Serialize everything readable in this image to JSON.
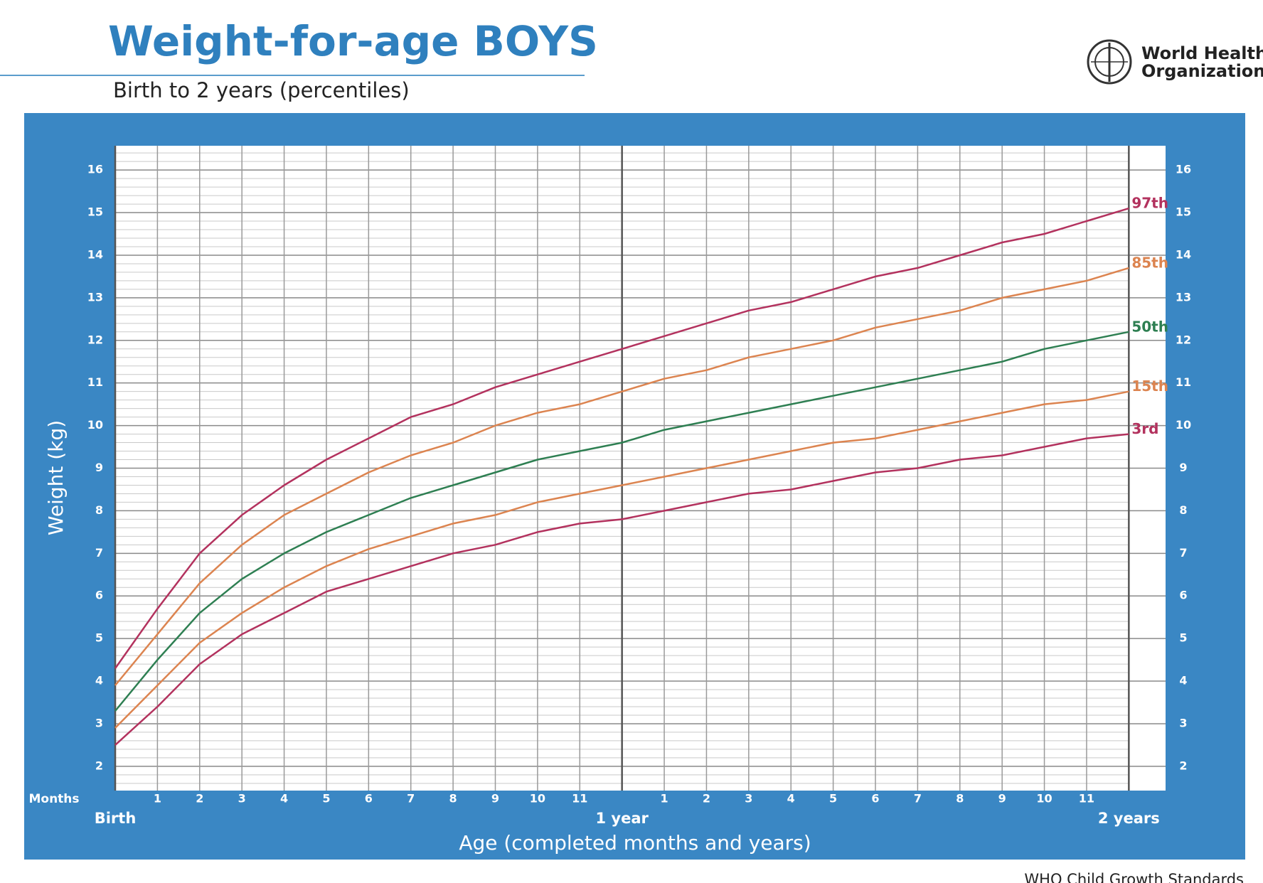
{
  "chart_data": {
    "type": "line",
    "title": "Weight-for-age BOYS",
    "subtitle": "Birth to 2 years (percentiles)",
    "organization": [
      "World Health",
      "Organization"
    ],
    "footer": "WHO Child Growth Standards",
    "y_label": "Weight (kg)",
    "x_label": "Age (completed months and years)",
    "x_unit_label": "Months",
    "x": [
      0,
      1,
      2,
      3,
      4,
      5,
      6,
      7,
      8,
      9,
      10,
      11,
      12,
      13,
      14,
      15,
      16,
      17,
      18,
      19,
      20,
      21,
      22,
      23,
      24
    ],
    "xlim": [
      0,
      24.87
    ],
    "ylim": [
      1.43,
      16.57
    ],
    "yticks": [
      2,
      3,
      4,
      5,
      6,
      7,
      8,
      9,
      10,
      11,
      12,
      13,
      14,
      15,
      16
    ],
    "xticks": [
      1,
      2,
      3,
      4,
      5,
      6,
      7,
      8,
      9,
      10,
      11,
      {
        "value": 13,
        "label": "1"
      },
      {
        "value": 14,
        "label": "2"
      },
      {
        "value": 15,
        "label": "3"
      },
      {
        "value": 16,
        "label": "4"
      },
      {
        "value": 17,
        "label": "5"
      },
      {
        "value": 18,
        "label": "6"
      },
      {
        "value": 19,
        "label": "7"
      },
      {
        "value": 20,
        "label": "8"
      },
      {
        "value": 21,
        "label": "9"
      },
      {
        "value": 22,
        "label": "10"
      },
      {
        "value": 23,
        "label": "11"
      }
    ],
    "xticks_major": [
      {
        "value": 0,
        "label": "Birth"
      },
      {
        "value": 12,
        "label": "1 year"
      },
      {
        "value": 24,
        "label": "2 years"
      }
    ],
    "grid": true,
    "grid_minor_step": 0.2,
    "series": [
      {
        "name": "97th",
        "color": "#b3325e",
        "values": [
          4.3,
          5.7,
          7.0,
          7.9,
          8.6,
          9.2,
          9.7,
          10.2,
          10.5,
          10.9,
          11.2,
          11.5,
          11.8,
          12.1,
          12.4,
          12.7,
          12.9,
          13.2,
          13.5,
          13.7,
          14.0,
          14.3,
          14.5,
          14.8,
          15.1
        ]
      },
      {
        "name": "85th",
        "color": "#dc8450",
        "values": [
          3.9,
          5.1,
          6.3,
          7.2,
          7.9,
          8.4,
          8.9,
          9.3,
          9.6,
          10.0,
          10.3,
          10.5,
          10.8,
          11.1,
          11.3,
          11.6,
          11.8,
          12.0,
          12.3,
          12.5,
          12.7,
          13.0,
          13.2,
          13.4,
          13.7
        ]
      },
      {
        "name": "50th",
        "color": "#2e7f52",
        "values": [
          3.3,
          4.5,
          5.6,
          6.4,
          7.0,
          7.5,
          7.9,
          8.3,
          8.6,
          8.9,
          9.2,
          9.4,
          9.6,
          9.9,
          10.1,
          10.3,
          10.5,
          10.7,
          10.9,
          11.1,
          11.3,
          11.5,
          11.8,
          12.0,
          12.2
        ]
      },
      {
        "name": "15th",
        "color": "#dc8450",
        "values": [
          2.9,
          3.9,
          4.9,
          5.6,
          6.2,
          6.7,
          7.1,
          7.4,
          7.7,
          7.9,
          8.2,
          8.4,
          8.6,
          8.8,
          9.0,
          9.2,
          9.4,
          9.6,
          9.7,
          9.9,
          10.1,
          10.3,
          10.5,
          10.6,
          10.8
        ]
      },
      {
        "name": "3rd",
        "color": "#b3325e",
        "values": [
          2.5,
          3.4,
          4.4,
          5.1,
          5.6,
          6.1,
          6.4,
          6.7,
          7.0,
          7.2,
          7.5,
          7.7,
          7.8,
          8.0,
          8.2,
          8.4,
          8.5,
          8.7,
          8.9,
          9.0,
          9.2,
          9.3,
          9.5,
          9.7,
          9.8
        ]
      }
    ]
  }
}
